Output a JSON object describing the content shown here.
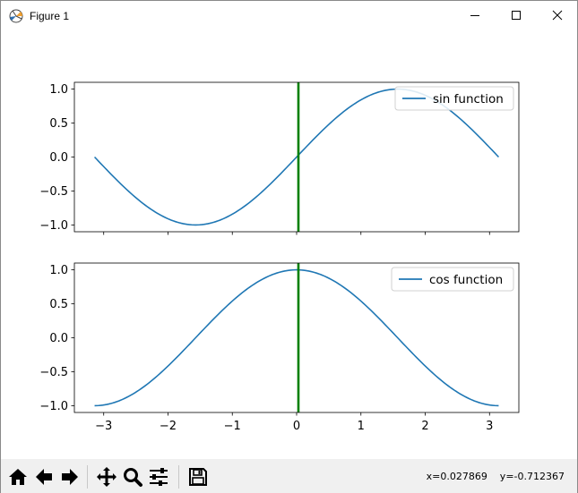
{
  "window": {
    "title": "Figure 1",
    "icon": "matplotlib-logo-icon",
    "controls": [
      "minimize-icon",
      "maximize-icon",
      "close-icon"
    ]
  },
  "toolbar": {
    "tools": [
      "home-icon",
      "back-arrow-icon",
      "forward-arrow-icon",
      "pan-move-icon",
      "zoom-magnifier-icon",
      "configure-subplots-icon",
      "save-floppy-icon"
    ],
    "coords": "x=0.027869    y=-0.712367"
  },
  "colors": {
    "line": "#1f77b4",
    "cursor": "#008000"
  },
  "chart_data": [
    {
      "type": "line",
      "series": [
        {
          "name": "sin function",
          "function": "sin",
          "x_range": [
            -3.14159,
            3.14159
          ]
        }
      ],
      "xlim": [
        -3.456,
        3.456
      ],
      "ylim": [
        -1.1,
        1.1
      ],
      "yticks": [
        -1.0,
        -0.5,
        0.0,
        0.5,
        1.0
      ],
      "ytick_labels": [
        "−1.0",
        "−0.5",
        "0.0",
        "0.5",
        "1.0"
      ],
      "xticks": [
        -3,
        -2,
        -1,
        0,
        1,
        2,
        3
      ],
      "xtick_labels_visible": false,
      "legend": "top-right",
      "vline_x": 0.027869,
      "grid": false
    },
    {
      "type": "line",
      "series": [
        {
          "name": "cos function",
          "function": "cos",
          "x_range": [
            -3.14159,
            3.14159
          ]
        }
      ],
      "xlim": [
        -3.456,
        3.456
      ],
      "ylim": [
        -1.1,
        1.1
      ],
      "yticks": [
        -1.0,
        -0.5,
        0.0,
        0.5,
        1.0
      ],
      "ytick_labels": [
        "−1.0",
        "−0.5",
        "0.0",
        "0.5",
        "1.0"
      ],
      "xticks": [
        -3,
        -2,
        -1,
        0,
        1,
        2,
        3
      ],
      "xtick_labels": [
        "−3",
        "−2",
        "−1",
        "0",
        "1",
        "2",
        "3"
      ],
      "legend": "top-right",
      "vline_x": 0.027869,
      "grid": false
    }
  ]
}
